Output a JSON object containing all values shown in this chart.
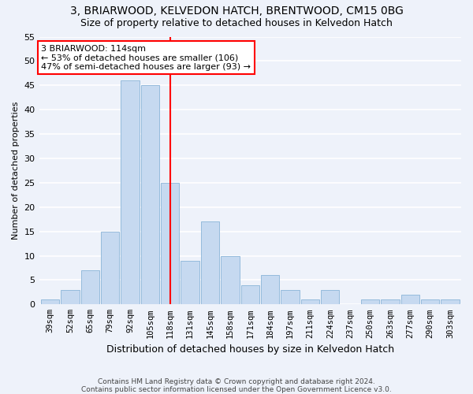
{
  "title1": "3, BRIARWOOD, KELVEDON HATCH, BRENTWOOD, CM15 0BG",
  "title2": "Size of property relative to detached houses in Kelvedon Hatch",
  "xlabel": "Distribution of detached houses by size in Kelvedon Hatch",
  "ylabel": "Number of detached properties",
  "categories": [
    "39sqm",
    "52sqm",
    "65sqm",
    "79sqm",
    "92sqm",
    "105sqm",
    "118sqm",
    "131sqm",
    "145sqm",
    "158sqm",
    "171sqm",
    "184sqm",
    "197sqm",
    "211sqm",
    "224sqm",
    "237sqm",
    "250sqm",
    "263sqm",
    "277sqm",
    "290sqm",
    "303sqm"
  ],
  "values": [
    1,
    3,
    7,
    15,
    46,
    45,
    25,
    9,
    17,
    10,
    4,
    6,
    3,
    1,
    3,
    0,
    1,
    1,
    2,
    1,
    1
  ],
  "bar_color": "#c6d9f0",
  "bar_edge_color": "#8ab4d8",
  "vline_x": 6,
  "vline_color": "red",
  "annotation_text": "3 BRIARWOOD: 114sqm\n← 53% of detached houses are smaller (106)\n47% of semi-detached houses are larger (93) →",
  "annotation_box_color": "white",
  "annotation_box_edge": "red",
  "ylim": [
    0,
    55
  ],
  "yticks": [
    0,
    5,
    10,
    15,
    20,
    25,
    30,
    35,
    40,
    45,
    50,
    55
  ],
  "footer1": "Contains HM Land Registry data © Crown copyright and database right 2024.",
  "footer2": "Contains public sector information licensed under the Open Government Licence v3.0.",
  "bg_color": "#eef2fa",
  "grid_color": "white",
  "title1_fontsize": 10,
  "title2_fontsize": 9,
  "xlabel_fontsize": 9,
  "ylabel_fontsize": 8,
  "tick_fontsize": 7.5,
  "ann_fontsize": 8
}
